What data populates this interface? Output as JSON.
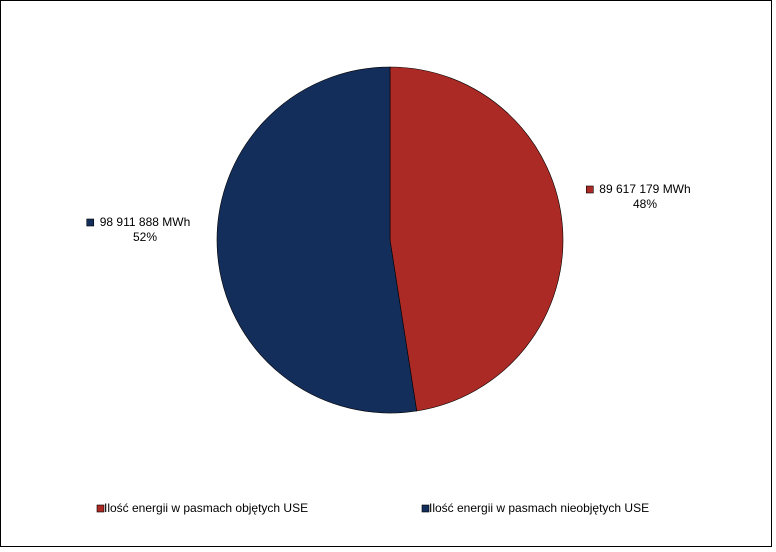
{
  "chart_data": {
    "type": "pie",
    "categories": [
      "Ilość energii w pasmach objętych USE",
      "Ilość energii w pasmach nieobjętych USE"
    ],
    "values": [
      89617179,
      98911888
    ],
    "value_labels": [
      "89 617 179 MWh",
      "98 911 888 MWh"
    ],
    "percentages": [
      48,
      52
    ],
    "percentage_labels": [
      "48%",
      "52%"
    ],
    "colors": [
      "#ac2a25",
      "#142e5c"
    ],
    "legend": "bottom"
  }
}
